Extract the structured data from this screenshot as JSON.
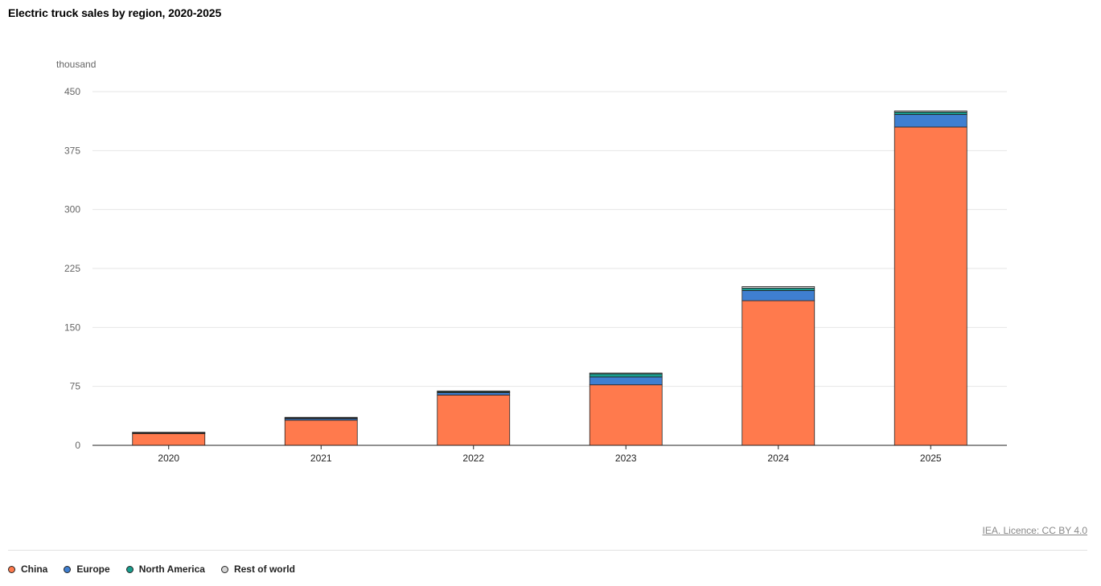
{
  "chart_data": {
    "type": "bar",
    "stacked": true,
    "title": "Electric truck sales by region, 2020-2025",
    "unit_label": "thousand",
    "categories": [
      "2020",
      "2021",
      "2022",
      "2023",
      "2024",
      "2025"
    ],
    "yticks": [
      "0",
      "75",
      "150",
      "225",
      "300",
      "375",
      "450"
    ],
    "ylim": [
      0,
      450
    ],
    "grid": true,
    "legend_position": "bottom-left",
    "series": [
      {
        "name": "China",
        "color": "#ff7a4d",
        "values": [
          15,
          32,
          64,
          77,
          184,
          405
        ]
      },
      {
        "name": "Europe",
        "color": "#3f7fd1",
        "values": [
          0.5,
          2,
          3,
          10,
          13,
          16
        ]
      },
      {
        "name": "North America",
        "color": "#199e8e",
        "values": [
          0.3,
          0.8,
          1.2,
          4,
          3,
          3
        ]
      },
      {
        "name": "Rest of world",
        "color": "#d6d6d6",
        "values": [
          0.2,
          0.4,
          1,
          1,
          2,
          1.5
        ]
      }
    ]
  },
  "source_label": "IEA. Licence: CC BY 4.0"
}
